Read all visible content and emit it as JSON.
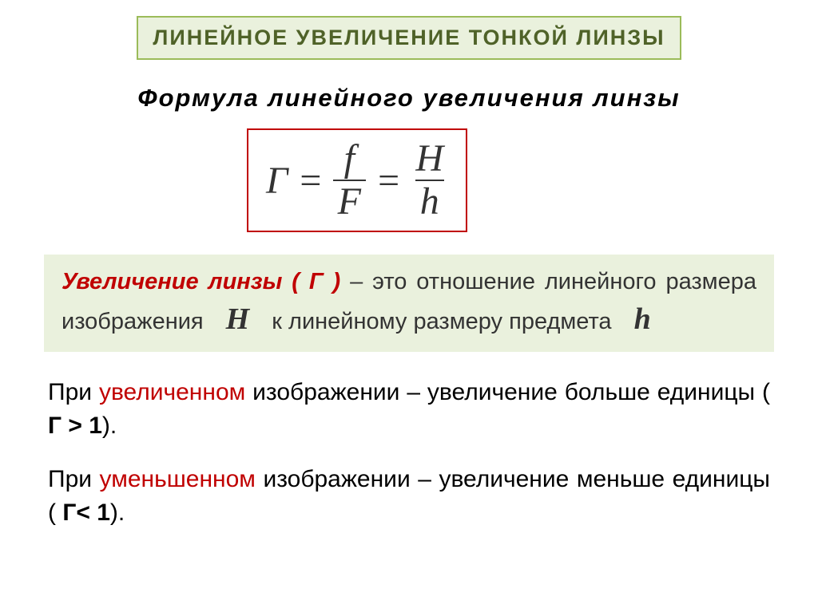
{
  "colors": {
    "green_border": "#9bbb59",
    "green_bg": "#eaf1dd",
    "green_text": "#4f6228",
    "red_text": "#c00000",
    "red_border": "#c00000",
    "body_text": "#333333"
  },
  "title": "ЛИНЕЙНОЕ  УВЕЛИЧЕНИЕ  ТОНКОЙ  ЛИНЗЫ",
  "subtitle": "Формула  линейного  увеличения  линзы",
  "formula": {
    "lhs": "Г",
    "eq": " = ",
    "frac1_num": "f",
    "frac1_den": "F",
    "frac2_num": "H",
    "frac2_den": "h"
  },
  "definition": {
    "term": "Увеличение линзы ( Г )",
    "dash": " – ",
    "body1": "это отношение линейного размера изображения ",
    "varH": "H",
    "body2": " к линейному размеру предмета ",
    "varh": "h"
  },
  "para1": {
    "pre": "При ",
    "hl": "увеличенном",
    "post": " изображении – увеличение больше единицы ( ",
    "cond": "Г > 1",
    "end": ")."
  },
  "para2": {
    "pre": "При ",
    "hl": "уменьшенном",
    "post": " изображении –   увеличение меньше единицы ( ",
    "cond": "Г< 1",
    "end": ")."
  }
}
